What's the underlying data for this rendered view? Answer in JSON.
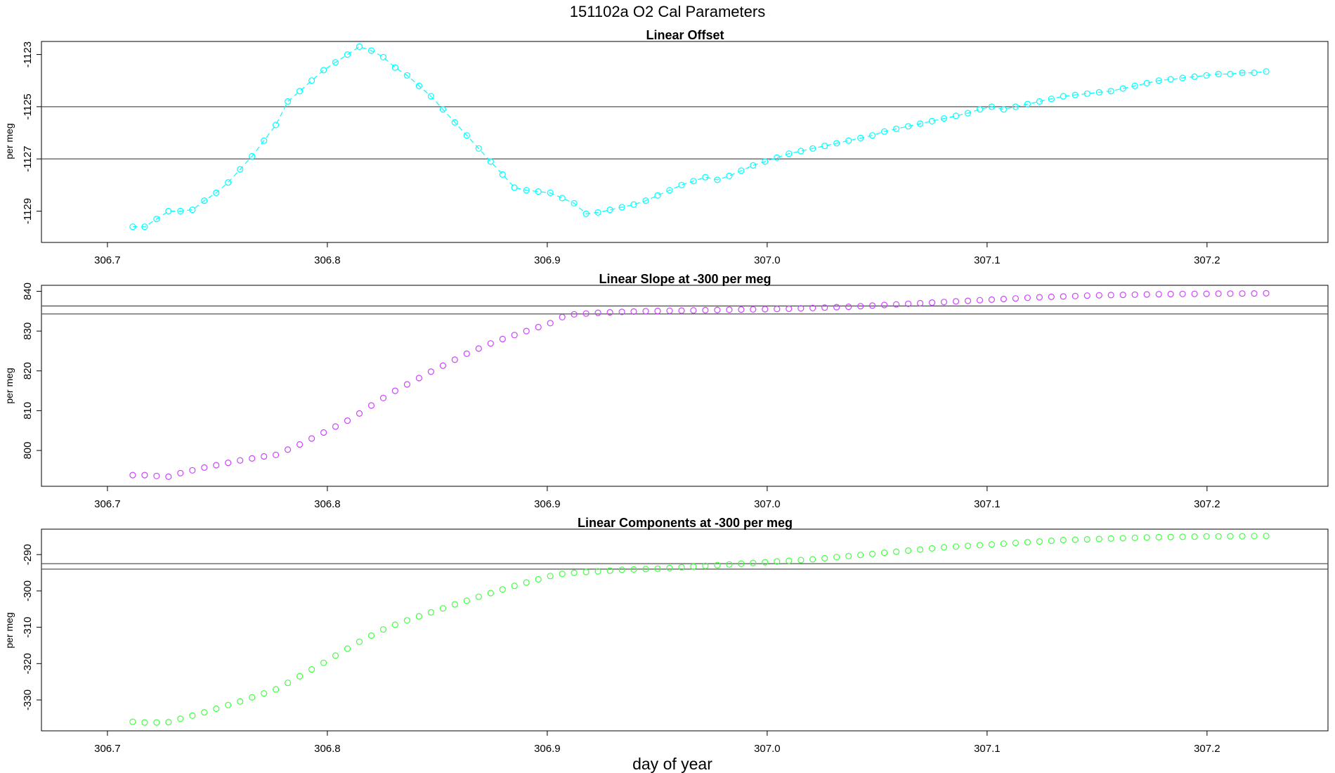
{
  "page": {
    "title": "151102a   O2 Cal Parameters",
    "xlabel": "day of year"
  },
  "chart_data": [
    {
      "type": "scatter",
      "title": "Linear Offset",
      "xlabel": "",
      "ylabel": "per meg",
      "xlim": [
        306.67,
        307.255
      ],
      "ylim": [
        -1130.2,
        -1122.5
      ],
      "xticks": [
        "306.7",
        "306.8",
        "306.9",
        "307.0",
        "307.1",
        "307.2"
      ],
      "yticks": [
        "-1123",
        "-1125",
        "-1127",
        "-1129"
      ],
      "ref_lines": [
        -1125.0,
        -1127.0
      ],
      "connected": true,
      "color": "#00ffff",
      "grid": false,
      "legend": "none",
      "series": [
        {
          "x_start": 306.7115,
          "x_step": 0.005425,
          "y": [
            -1129.6,
            -1129.6,
            -1129.3,
            -1129.0,
            -1129.0,
            -1128.95,
            -1128.6,
            -1128.3,
            -1127.9,
            -1127.4,
            -1126.9,
            -1126.3,
            -1125.7,
            -1124.8,
            -1124.4,
            -1124.0,
            -1123.6,
            -1123.3,
            -1123.0,
            -1122.7,
            -1122.85,
            -1123.1,
            -1123.5,
            -1123.8,
            -1124.2,
            -1124.6,
            -1125.1,
            -1125.6,
            -1126.1,
            -1126.6,
            -1127.1,
            -1127.6,
            -1128.1,
            -1128.2,
            -1128.25,
            -1128.3,
            -1128.5,
            -1128.7,
            -1129.1,
            -1129.05,
            -1128.95,
            -1128.85,
            -1128.75,
            -1128.6,
            -1128.4,
            -1128.2,
            -1128.0,
            -1127.85,
            -1127.7,
            -1127.8,
            -1127.65,
            -1127.45,
            -1127.25,
            -1127.1,
            -1126.95,
            -1126.8,
            -1126.7,
            -1126.6,
            -1126.5,
            -1126.4,
            -1126.3,
            -1126.2,
            -1126.1,
            -1125.95,
            -1125.85,
            -1125.75,
            -1125.65,
            -1125.55,
            -1125.45,
            -1125.35,
            -1125.25,
            -1125.1,
            -1125.0,
            -1125.1,
            -1125.0,
            -1124.9,
            -1124.8,
            -1124.7,
            -1124.6,
            -1124.55,
            -1124.5,
            -1124.45,
            -1124.4,
            -1124.3,
            -1124.2,
            -1124.1,
            -1124.0,
            -1123.95,
            -1123.9,
            -1123.85,
            -1123.8,
            -1123.75,
            -1123.75,
            -1123.7,
            -1123.7,
            -1123.65
          ]
        }
      ]
    },
    {
      "type": "scatter",
      "title": "Linear Slope at -300 per meg",
      "xlabel": "",
      "ylabel": "per meg",
      "xlim": [
        306.67,
        307.255
      ],
      "ylim": [
        791.0,
        841.5
      ],
      "xticks": [
        "306.7",
        "306.8",
        "306.9",
        "307.0",
        "307.1",
        "307.2"
      ],
      "yticks": [
        "800",
        "810",
        "820",
        "830",
        "840"
      ],
      "ref_lines": [
        836.3,
        834.3
      ],
      "connected": false,
      "color": "#cc44ff",
      "grid": false,
      "legend": "none",
      "series": [
        {
          "x_start": 306.7115,
          "x_step": 0.005425,
          "y": [
            793.8,
            793.8,
            793.6,
            793.4,
            794.3,
            795.0,
            795.7,
            796.3,
            796.9,
            797.5,
            798.0,
            798.5,
            798.9,
            800.2,
            801.5,
            803.0,
            804.5,
            806.0,
            807.5,
            809.3,
            811.3,
            813.2,
            815.0,
            816.6,
            818.2,
            819.8,
            821.3,
            822.8,
            824.3,
            825.6,
            826.9,
            828.0,
            829.0,
            830.0,
            831.0,
            832.0,
            833.5,
            834.2,
            834.4,
            834.6,
            834.7,
            834.8,
            834.9,
            835.0,
            835.05,
            835.1,
            835.15,
            835.2,
            835.25,
            835.3,
            835.35,
            835.4,
            835.45,
            835.5,
            835.55,
            835.6,
            835.7,
            835.8,
            835.9,
            836.0,
            836.1,
            836.25,
            836.4,
            836.55,
            836.7,
            836.85,
            837.0,
            837.15,
            837.3,
            837.45,
            837.6,
            837.75,
            837.9,
            838.05,
            838.2,
            838.35,
            838.5,
            838.6,
            838.7,
            838.8,
            838.9,
            839.0,
            839.05,
            839.1,
            839.15,
            839.2,
            839.25,
            839.3,
            839.32,
            839.35,
            839.37,
            839.4,
            839.42,
            839.44,
            839.46,
            839.48
          ]
        }
      ]
    },
    {
      "type": "scatter",
      "title": "Linear Components at -300 per meg",
      "xlabel": "",
      "ylabel": "per meg",
      "xlim": [
        306.67,
        307.255
      ],
      "ylim": [
        -338.5,
        -283.0
      ],
      "xticks": [
        "306.7",
        "306.8",
        "306.9",
        "307.0",
        "307.1",
        "307.2"
      ],
      "yticks": [
        "-290",
        "-300",
        "-310",
        "-320",
        "-330"
      ],
      "ref_lines": [
        -292.5,
        -294.0
      ],
      "connected": false,
      "color": "#44ff44",
      "grid": false,
      "legend": "none",
      "series": [
        {
          "x_start": 306.7115,
          "x_step": 0.005425,
          "y": [
            -336.0,
            -336.2,
            -336.2,
            -336.1,
            -335.2,
            -334.3,
            -333.4,
            -332.4,
            -331.4,
            -330.4,
            -329.3,
            -328.2,
            -327.1,
            -325.3,
            -323.5,
            -321.6,
            -319.8,
            -317.8,
            -315.9,
            -314.0,
            -312.3,
            -310.6,
            -309.3,
            -308.1,
            -307.0,
            -305.9,
            -304.8,
            -303.7,
            -302.7,
            -301.6,
            -300.6,
            -299.6,
            -298.6,
            -297.7,
            -296.8,
            -295.9,
            -295.3,
            -295.0,
            -294.8,
            -294.6,
            -294.4,
            -294.2,
            -294.1,
            -294.0,
            -293.9,
            -293.7,
            -293.5,
            -293.3,
            -293.1,
            -292.9,
            -292.7,
            -292.5,
            -292.3,
            -292.1,
            -291.9,
            -291.7,
            -291.5,
            -291.3,
            -291.0,
            -290.7,
            -290.4,
            -290.1,
            -289.8,
            -289.5,
            -289.2,
            -288.9,
            -288.6,
            -288.3,
            -288.0,
            -287.8,
            -287.6,
            -287.4,
            -287.2,
            -287.0,
            -286.8,
            -286.6,
            -286.4,
            -286.2,
            -286.0,
            -285.9,
            -285.8,
            -285.7,
            -285.6,
            -285.5,
            -285.4,
            -285.3,
            -285.2,
            -285.15,
            -285.1,
            -285.05,
            -285.0,
            -285.0,
            -284.95,
            -284.95,
            -284.9,
            -284.9
          ]
        }
      ]
    }
  ]
}
